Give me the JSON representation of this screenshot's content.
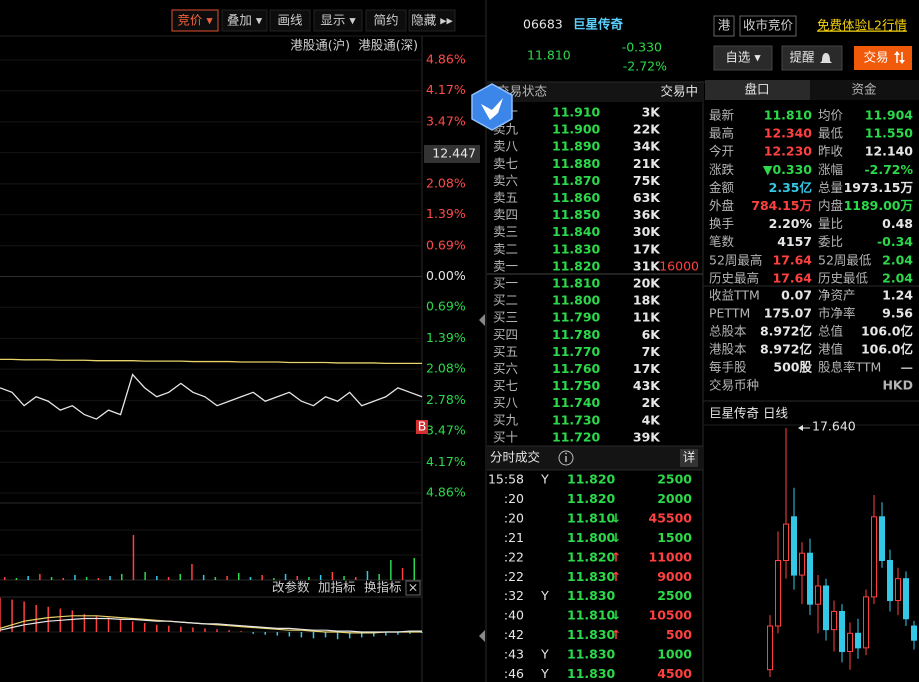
{
  "toolbar": {
    "buttons": [
      "竞价 ▾",
      "叠加 ▾",
      "画线",
      "显示 ▾",
      "简约",
      "隐藏 ▸▸"
    ],
    "active": 0
  },
  "price_chart": {
    "legend": [
      "港股通(沪)",
      "港股通(深)"
    ],
    "yticks": [
      {
        "value": 4.86,
        "label": "4.86%"
      },
      {
        "value": 4.17,
        "label": "4.17%"
      },
      {
        "value": 3.47,
        "label": "3.47%"
      },
      {
        "value": 2.78,
        "label": "2.78%"
      },
      {
        "value": 2.08,
        "label": "2.08%"
      },
      {
        "value": 1.39,
        "label": "1.39%"
      },
      {
        "value": 0.69,
        "label": "0.69%"
      },
      {
        "value": 0,
        "label": "0.00%"
      },
      {
        "value": -0.69,
        "label": "0.69%"
      },
      {
        "value": -1.39,
        "label": "1.39%"
      },
      {
        "value": -2.08,
        "label": "2.08%"
      },
      {
        "value": -2.78,
        "label": "2.78%"
      },
      {
        "value": -3.47,
        "label": "3.47%"
      },
      {
        "value": -4.17,
        "label": "4.17%"
      },
      {
        "value": -4.86,
        "label": "4.86%"
      }
    ],
    "ylim": [
      -4.86,
      4.86
    ],
    "cursor_label": "12.447",
    "marker": "B",
    "price_color": "#e6e6e6",
    "avg_color": "#e8d36a",
    "price": [
      -2.5,
      -2.6,
      -2.9,
      -2.7,
      -2.8,
      -3.0,
      -2.9,
      -3.1,
      -3.2,
      -3.0,
      -3.1,
      -2.2,
      -2.5,
      -2.7,
      -2.6,
      -2.4,
      -2.6,
      -2.7,
      -2.9,
      -2.8,
      -2.7,
      -2.6,
      -2.8,
      -2.7,
      -2.6,
      -2.8,
      -2.9,
      -2.7,
      -2.8,
      -2.6,
      -2.9,
      -2.8,
      -2.7,
      -2.5,
      -2.6,
      -2.7
    ],
    "avg": [
      -1.86,
      -1.86,
      -1.87,
      -1.87,
      -1.87,
      -1.88,
      -1.88,
      -1.88,
      -1.89,
      -1.89,
      -1.89,
      -1.89,
      -1.9,
      -1.9,
      -1.9,
      -1.9,
      -1.91,
      -1.91,
      -1.91,
      -1.91,
      -1.92,
      -1.92,
      -1.92,
      -1.92,
      -1.93,
      -1.93,
      -1.93,
      -1.93,
      -1.94,
      -1.94,
      -1.94,
      -1.94,
      -1.95,
      -1.95,
      -1.95,
      -1.95
    ]
  },
  "volume": {
    "values": [
      3,
      2,
      4,
      6,
      3,
      2,
      5,
      3,
      2,
      4,
      6,
      45,
      8,
      4,
      3,
      6,
      16,
      5,
      3,
      4,
      7,
      3,
      5,
      2,
      6,
      4,
      3,
      5,
      8,
      4,
      3,
      9,
      6,
      20,
      12,
      22
    ],
    "colors": [
      "#ff4040",
      "#2bd94a",
      "#35c8e6",
      "#ff4040",
      "#2bd94a",
      "#ff4040",
      "#35c8e6",
      "#2bd94a",
      "#ff4040",
      "#35c8e6",
      "#2bd94a",
      "#ff4040",
      "#2bd94a",
      "#35c8e6",
      "#ff4040",
      "#2bd94a",
      "#ff4040",
      "#35c8e6",
      "#2bd94a",
      "#ff4040",
      "#2bd94a",
      "#35c8e6",
      "#ff4040",
      "#2bd94a",
      "#35c8e6",
      "#ff4040",
      "#2bd94a",
      "#35c8e6",
      "#ff4040",
      "#2bd94a",
      "#ff4040",
      "#35c8e6",
      "#2bd94a",
      "#2bd94a",
      "#ff4040",
      "#2bd94a"
    ]
  },
  "indicator": {
    "buttons": [
      "改参数",
      "加指标",
      "换指标"
    ],
    "close": "×",
    "bars": [
      38,
      36,
      34,
      30,
      28,
      26,
      24,
      20,
      18,
      16,
      14,
      12,
      10,
      8,
      7,
      6,
      5,
      4,
      3,
      2,
      1,
      -2,
      -3,
      -4,
      -5,
      -6,
      -7,
      -6,
      -8,
      -7,
      -6,
      -5,
      -4,
      -3,
      -2,
      -1
    ],
    "line1": [
      4,
      8,
      12,
      14,
      16,
      17,
      18,
      18,
      18,
      17,
      16,
      15,
      14,
      13,
      12,
      11,
      10,
      9,
      8,
      7,
      6,
      5,
      4,
      3,
      2,
      2,
      1,
      0,
      0,
      -1,
      -1,
      -1,
      0,
      0,
      0,
      0
    ],
    "line2": [
      2,
      5,
      8,
      10,
      12,
      13,
      14,
      15,
      15,
      15,
      14,
      14,
      13,
      12,
      12,
      11,
      10,
      9,
      9,
      8,
      7,
      6,
      5,
      4,
      4,
      3,
      2,
      2,
      1,
      1,
      0,
      0,
      0,
      0,
      1,
      1
    ]
  },
  "quote": {
    "code": "06683",
    "name": "巨星传奇",
    "price": "11.810",
    "change": "-0.330",
    "change_pct": "-2.72%"
  },
  "order_book": {
    "status_label": "交易状态",
    "status": "交易中",
    "sell1_extra": "16000",
    "sell": [
      {
        "label": "卖十",
        "price": "11.910",
        "vol": "3K"
      },
      {
        "label": "卖九",
        "price": "11.900",
        "vol": "22K"
      },
      {
        "label": "卖八",
        "price": "11.890",
        "vol": "34K"
      },
      {
        "label": "卖七",
        "price": "11.880",
        "vol": "21K"
      },
      {
        "label": "卖六",
        "price": "11.870",
        "vol": "75K"
      },
      {
        "label": "卖五",
        "price": "11.860",
        "vol": "63K"
      },
      {
        "label": "卖四",
        "price": "11.850",
        "vol": "36K"
      },
      {
        "label": "卖三",
        "price": "11.840",
        "vol": "30K"
      },
      {
        "label": "卖二",
        "price": "11.830",
        "vol": "17K"
      },
      {
        "label": "卖一",
        "price": "11.820",
        "vol": "31K"
      }
    ],
    "buy": [
      {
        "label": "买一",
        "price": "11.810",
        "vol": "20K"
      },
      {
        "label": "买二",
        "price": "11.800",
        "vol": "18K"
      },
      {
        "label": "买三",
        "price": "11.790",
        "vol": "11K"
      },
      {
        "label": "买四",
        "price": "11.780",
        "vol": "6K"
      },
      {
        "label": "买五",
        "price": "11.770",
        "vol": "7K"
      },
      {
        "label": "买六",
        "price": "11.760",
        "vol": "17K"
      },
      {
        "label": "买七",
        "price": "11.750",
        "vol": "43K"
      },
      {
        "label": "买八",
        "price": "11.740",
        "vol": "2K"
      },
      {
        "label": "买九",
        "price": "11.730",
        "vol": "4K"
      },
      {
        "label": "买十",
        "price": "11.720",
        "vol": "39K"
      }
    ]
  },
  "trades": {
    "title": "分时成交",
    "detail": "详",
    "rows": [
      {
        "time": "15:58",
        "flag": "Y",
        "price": "11.820",
        "arrow": "",
        "vol": "2500",
        "vol_color": "#2bd94a"
      },
      {
        "time": ":20",
        "flag": "",
        "price": "11.820",
        "arrow": "",
        "vol": "2000",
        "vol_color": "#2bd94a"
      },
      {
        "time": ":20",
        "flag": "",
        "price": "11.810",
        "arrow": "↓",
        "vol": "45500",
        "vol_color": "#ff4040"
      },
      {
        "time": ":21",
        "flag": "",
        "price": "11.800",
        "arrow": "↓",
        "vol": "1500",
        "vol_color": "#2bd94a"
      },
      {
        "time": ":22",
        "flag": "",
        "price": "11.820",
        "arrow": "↑",
        "vol": "11000",
        "vol_color": "#ff4040"
      },
      {
        "time": ":22",
        "flag": "",
        "price": "11.830",
        "arrow": "↑",
        "vol": "9000",
        "vol_color": "#ff4040"
      },
      {
        "time": ":32",
        "flag": "Y",
        "price": "11.830",
        "arrow": "",
        "vol": "2500",
        "vol_color": "#2bd94a"
      },
      {
        "time": ":40",
        "flag": "",
        "price": "11.810",
        "arrow": "↓",
        "vol": "10500",
        "vol_color": "#ff4040"
      },
      {
        "time": ":42",
        "flag": "",
        "price": "11.830",
        "arrow": "↑",
        "vol": "500",
        "vol_color": "#ff4040"
      },
      {
        "time": ":43",
        "flag": "Y",
        "price": "11.830",
        "arrow": "",
        "vol": "1000",
        "vol_color": "#2bd94a"
      },
      {
        "time": ":46",
        "flag": "Y",
        "price": "11.830",
        "arrow": "",
        "vol": "4500",
        "vol_color": "#ff4040"
      }
    ]
  },
  "top_bar": {
    "market": "港",
    "auction": "收市竞价",
    "l2": "免费体验L2行情",
    "buttons": [
      "自选 ▾",
      "提醒",
      "交易"
    ]
  },
  "tabs": [
    "盘口",
    "资金"
  ],
  "stats": [
    [
      {
        "label": "最新",
        "value": "11.810",
        "color": "green"
      },
      {
        "label": "均价",
        "value": "11.904",
        "color": "green"
      }
    ],
    [
      {
        "label": "最高",
        "value": "12.340",
        "color": "red"
      },
      {
        "label": "最低",
        "value": "11.550",
        "color": "green"
      }
    ],
    [
      {
        "label": "今开",
        "value": "12.230",
        "color": "red"
      },
      {
        "label": "昨收",
        "value": "12.140",
        "color": "white"
      }
    ],
    [
      {
        "label": "涨跌",
        "value": "▼0.330",
        "color": "green"
      },
      {
        "label": "涨幅",
        "value": "-2.72%",
        "color": "green"
      }
    ],
    [
      {
        "label": "金额",
        "value": "2.35亿",
        "color": "cyan"
      },
      {
        "label": "总量",
        "value": "1973.15万",
        "color": "white"
      }
    ],
    [
      {
        "label": "外盘",
        "value": "784.15万",
        "color": "red"
      },
      {
        "label": "内盘",
        "value": "1189.00万",
        "color": "green"
      }
    ],
    [
      {
        "label": "换手",
        "value": "2.20%",
        "color": "white"
      },
      {
        "label": "量比",
        "value": "0.48",
        "color": "white"
      }
    ],
    [
      {
        "label": "笔数",
        "value": "4157",
        "color": "white"
      },
      {
        "label": "委比",
        "value": "-0.34",
        "color": "green"
      }
    ],
    [
      {
        "label": "52周最高",
        "value": "17.64",
        "color": "red"
      },
      {
        "label": "52周最低",
        "value": "2.04",
        "color": "green"
      }
    ],
    [
      {
        "label": "历史最高",
        "value": "17.64",
        "color": "red"
      },
      {
        "label": "历史最低",
        "value": "2.04",
        "color": "green"
      }
    ],
    [
      {
        "label": "收益TTM",
        "value": "0.07",
        "color": "white"
      },
      {
        "label": "净资产",
        "value": "1.24",
        "color": "white"
      }
    ],
    [
      {
        "label": "PETTM",
        "value": "175.07",
        "color": "white"
      },
      {
        "label": "市净率",
        "value": "9.56",
        "color": "white"
      }
    ],
    [
      {
        "label": "总股本",
        "value": "8.972亿",
        "color": "white"
      },
      {
        "label": "总值",
        "value": "106.0亿",
        "color": "white"
      }
    ],
    [
      {
        "label": "港股本",
        "value": "8.972亿",
        "color": "white"
      },
      {
        "label": "港值",
        "value": "106.0亿",
        "color": "white"
      }
    ],
    [
      {
        "label": "每手股",
        "value": "500股",
        "color": "white"
      },
      {
        "label": "股息率TTM",
        "value": "—",
        "color": "gray"
      }
    ],
    [
      {
        "label": "交易币种",
        "value": "HKD",
        "color": "gray"
      }
    ]
  ],
  "daily_chart": {
    "title": "巨星传奇 日线",
    "high_label": "17.640",
    "ylim": [
      10.5,
      17.9
    ],
    "up_color": "#ff4040",
    "down_color": "#35c8e6",
    "candles": [
      {
        "o": 11.0,
        "h": 12.5,
        "l": 10.8,
        "c": 12.2
      },
      {
        "o": 12.2,
        "h": 14.8,
        "l": 12.0,
        "c": 14.0
      },
      {
        "o": 14.0,
        "h": 17.64,
        "l": 13.5,
        "c": 15.0
      },
      {
        "o": 15.2,
        "h": 16.0,
        "l": 13.2,
        "c": 13.6
      },
      {
        "o": 13.6,
        "h": 14.5,
        "l": 12.8,
        "c": 14.2
      },
      {
        "o": 14.2,
        "h": 14.6,
        "l": 12.5,
        "c": 12.8
      },
      {
        "o": 12.8,
        "h": 13.6,
        "l": 12.0,
        "c": 13.3
      },
      {
        "o": 13.3,
        "h": 13.5,
        "l": 11.8,
        "c": 12.1
      },
      {
        "o": 12.1,
        "h": 12.9,
        "l": 11.5,
        "c": 12.6
      },
      {
        "o": 12.6,
        "h": 12.8,
        "l": 11.2,
        "c": 11.5
      },
      {
        "o": 11.5,
        "h": 12.3,
        "l": 11.0,
        "c": 12.0
      },
      {
        "o": 12.0,
        "h": 12.4,
        "l": 11.3,
        "c": 11.6
      },
      {
        "o": 11.6,
        "h": 13.2,
        "l": 11.4,
        "c": 13.0
      },
      {
        "o": 13.0,
        "h": 15.8,
        "l": 12.8,
        "c": 15.2
      },
      {
        "o": 15.2,
        "h": 15.6,
        "l": 13.8,
        "c": 14.0
      },
      {
        "o": 14.0,
        "h": 14.3,
        "l": 12.6,
        "c": 12.9
      },
      {
        "o": 12.9,
        "h": 13.8,
        "l": 12.5,
        "c": 13.5
      },
      {
        "o": 13.5,
        "h": 13.7,
        "l": 12.2,
        "c": 12.4
      },
      {
        "o": 12.2,
        "h": 12.34,
        "l": 11.55,
        "c": 11.81
      }
    ]
  }
}
